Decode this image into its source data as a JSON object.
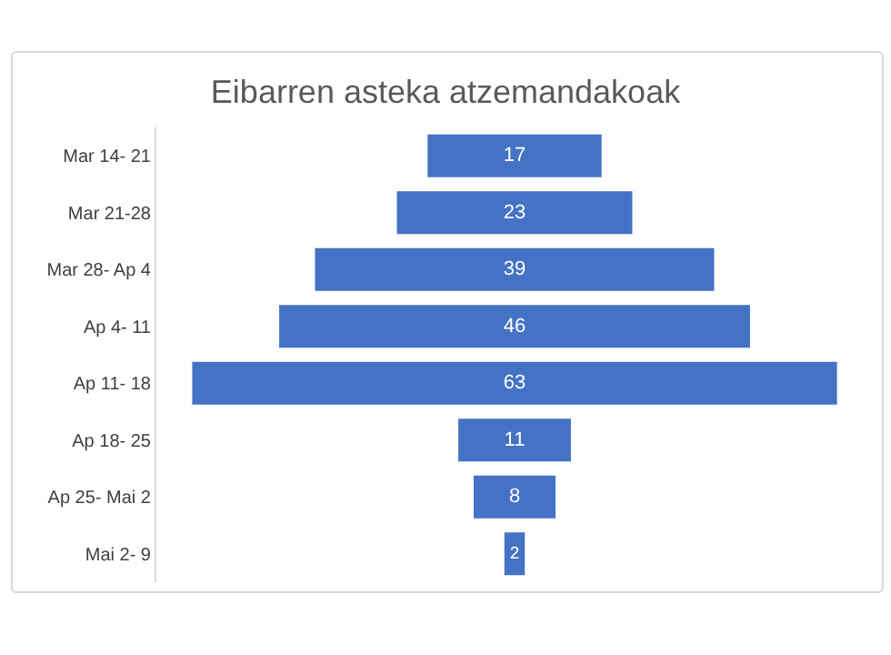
{
  "chart_data": {
    "type": "other",
    "title": "Eibarren asteka atzemandakoak",
    "categories": [
      "Mar 14- 21",
      "Mar 21-28",
      "Mar 28- Ap 4",
      "Ap 4- 11",
      "Ap 11- 18",
      "Ap 18- 25",
      "Ap 25- Mai 2",
      "Mai 2- 9"
    ],
    "values": [
      17,
      23,
      39,
      46,
      63,
      11,
      8,
      2
    ],
    "color": "#4472c4",
    "data_labels": true
  }
}
